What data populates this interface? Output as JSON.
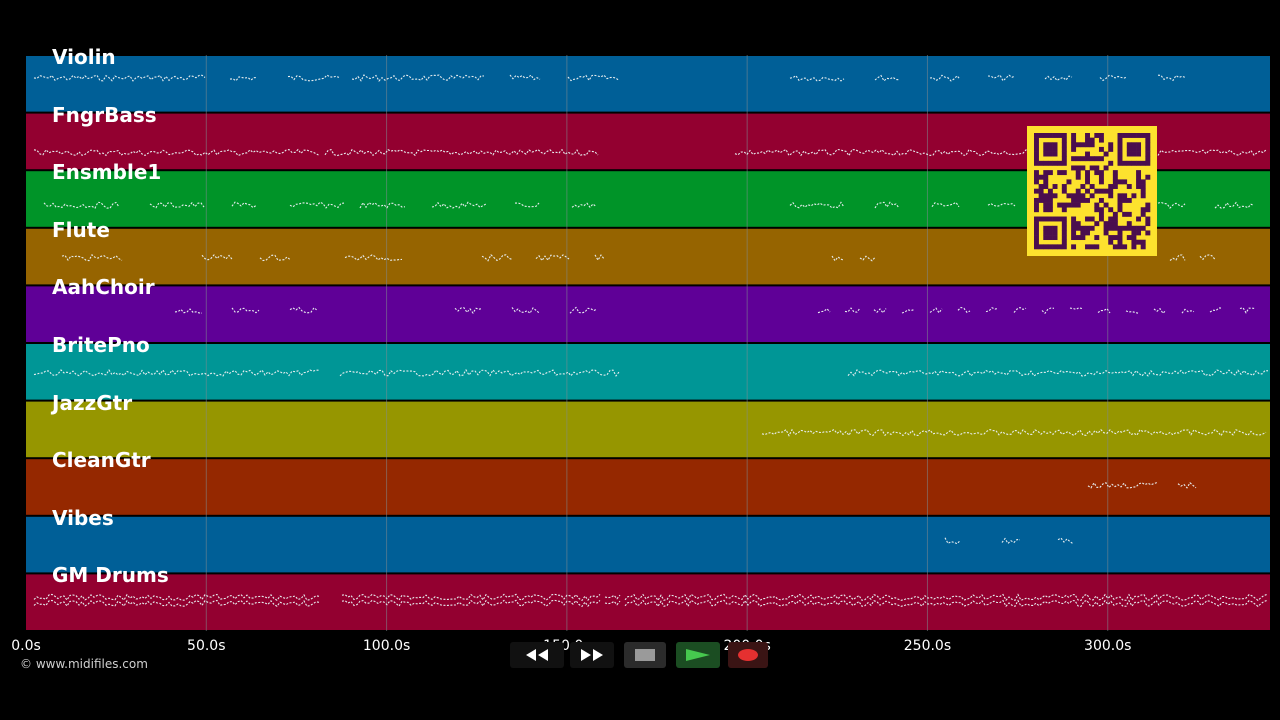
{
  "tracks": [
    {
      "name": "Violin",
      "color": "#005f97"
    },
    {
      "name": "FngrBass",
      "color": "#930030"
    },
    {
      "name": "Ensmble1",
      "color": "#009428"
    },
    {
      "name": "Flute",
      "color": "#966400"
    },
    {
      "name": "AahChoir",
      "color": "#5f0097"
    },
    {
      "name": "BritePno",
      "color": "#009696"
    },
    {
      "name": "JazzGtr",
      "color": "#969600"
    },
    {
      "name": "CleanGtr",
      "color": "#952800"
    },
    {
      "name": "Vibes",
      "color": "#005f97"
    },
    {
      "name": "GM Drums",
      "color": "#930030"
    }
  ],
  "timeline": {
    "ticks": [
      "0.0s",
      "50.0s",
      "100.0s",
      "150.0s",
      "200.0s",
      "250.0s",
      "300.0s"
    ],
    "seconds": [
      0,
      50,
      100,
      150,
      200,
      250,
      300
    ],
    "end_seconds": 345
  },
  "transport": {
    "rewind_icon": "rewind-icon",
    "forward_icon": "fast-forward-icon",
    "stop_icon": "stop-icon",
    "play_icon": "play-icon",
    "record_icon": "record-icon"
  },
  "copyright": "© www.midifiles.com",
  "accent": {
    "qr_bg": "#fde22e",
    "qr_fg": "#4a0e4e",
    "grid": "#7f8a8f",
    "note": "#e8eef0"
  }
}
